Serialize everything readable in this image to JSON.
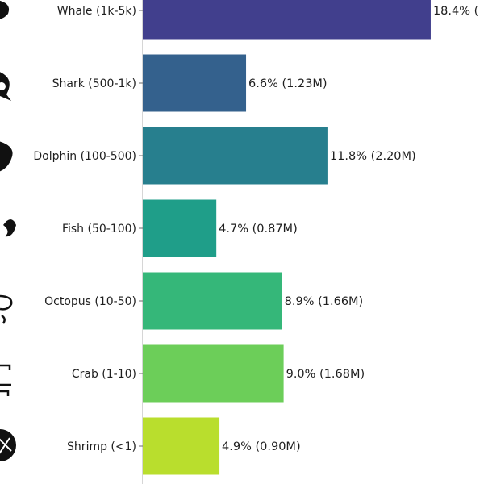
{
  "chart_data": {
    "type": "bar",
    "orientation": "horizontal",
    "categories": [
      "Whale (1k-5k)",
      "Shark (500-1k)",
      "Dolphin (100-500)",
      "Fish (50-100)",
      "Octopus (10-50)",
      "Crab (1-10)",
      "Shrimp (<1)"
    ],
    "values": [
      18.4,
      6.6,
      11.8,
      4.7,
      8.9,
      9.0,
      4.9
    ],
    "data_labels": [
      "18.4% (",
      "6.6% (1.23M)",
      "11.8% (2.20M)",
      "4.7% (0.87M)",
      "8.9% (1.66M)",
      "9.0% (1.68M)",
      "4.9% (0.90M)"
    ],
    "icons": [
      "whale-icon",
      "shark-icon",
      "dolphin-icon",
      "fish-icon",
      "octopus-icon",
      "crab-icon",
      "shrimp-icon"
    ],
    "colors": [
      "#413f8d",
      "#34618d",
      "#277f8e",
      "#1f9e89",
      "#35b779",
      "#6cce59",
      "#b9de2d"
    ],
    "title": "",
    "xlabel": "",
    "ylabel": "",
    "grid": false,
    "legend": "none"
  }
}
